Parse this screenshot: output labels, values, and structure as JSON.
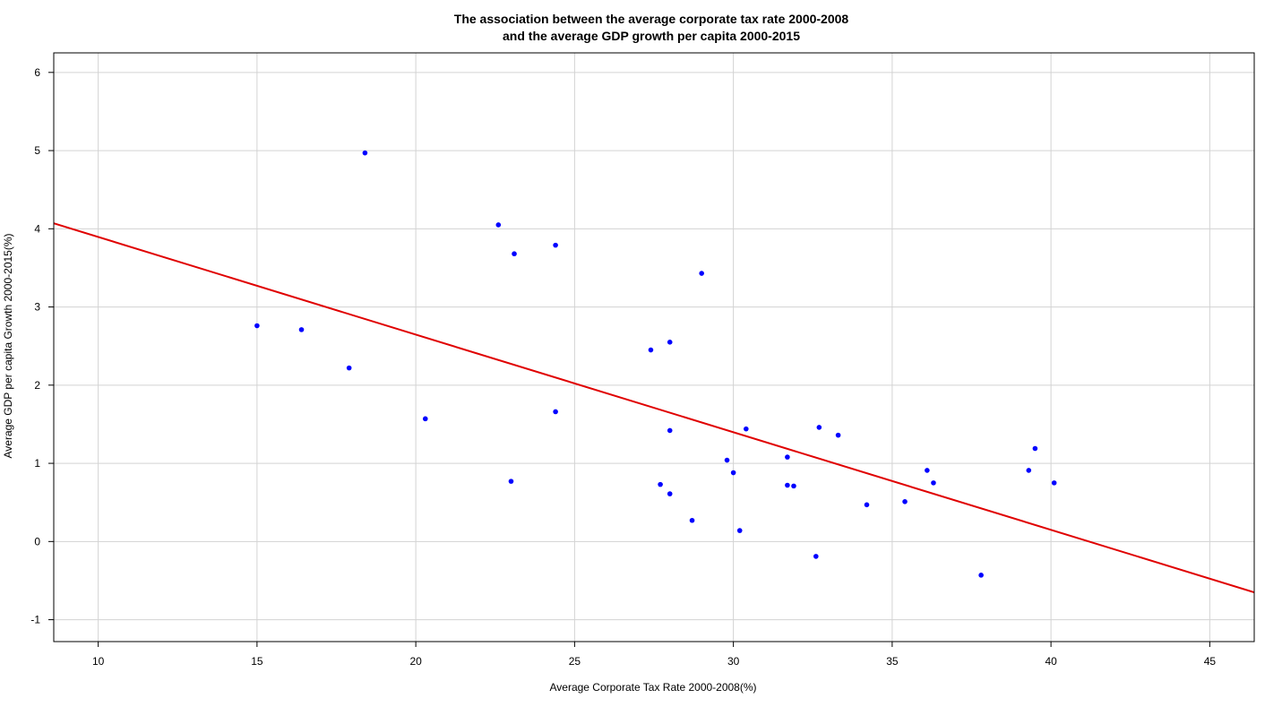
{
  "chart_data": {
    "type": "scatter",
    "title": "The association between the average corporate tax rate 2000-2008",
    "subtitle": "and the average GDP growth per capita 2000-2015",
    "xlabel": "Average Corporate Tax Rate 2000-2008(%)",
    "ylabel": "Average GDP per capita Growth 2000-2015(%)",
    "xlim": [
      8.6,
      46.4
    ],
    "ylim": [
      -1.28,
      6.25
    ],
    "x_ticks": [
      10,
      15,
      20,
      25,
      30,
      35,
      40,
      45
    ],
    "y_ticks": [
      -1,
      0,
      1,
      2,
      3,
      4,
      5,
      6
    ],
    "grid": true,
    "point_color": "#0000ff",
    "line_color": "#e00000",
    "points": [
      {
        "x": 15.0,
        "y": 2.76
      },
      {
        "x": 16.4,
        "y": 2.71
      },
      {
        "x": 17.9,
        "y": 2.22
      },
      {
        "x": 18.4,
        "y": 4.97
      },
      {
        "x": 20.3,
        "y": 1.57
      },
      {
        "x": 22.6,
        "y": 4.05
      },
      {
        "x": 23.0,
        "y": 0.77
      },
      {
        "x": 23.1,
        "y": 3.68
      },
      {
        "x": 24.4,
        "y": 3.79
      },
      {
        "x": 24.4,
        "y": 1.66
      },
      {
        "x": 27.4,
        "y": 2.45
      },
      {
        "x": 27.7,
        "y": 0.73
      },
      {
        "x": 28.0,
        "y": 2.55
      },
      {
        "x": 28.0,
        "y": 1.42
      },
      {
        "x": 28.0,
        "y": 0.61
      },
      {
        "x": 28.7,
        "y": 0.27
      },
      {
        "x": 29.0,
        "y": 3.43
      },
      {
        "x": 29.8,
        "y": 1.04
      },
      {
        "x": 30.0,
        "y": 0.88
      },
      {
        "x": 30.2,
        "y": 0.14
      },
      {
        "x": 30.4,
        "y": 1.44
      },
      {
        "x": 31.7,
        "y": 1.08
      },
      {
        "x": 31.7,
        "y": 0.72
      },
      {
        "x": 31.9,
        "y": 0.71
      },
      {
        "x": 32.6,
        "y": -0.19
      },
      {
        "x": 32.7,
        "y": 1.46
      },
      {
        "x": 33.3,
        "y": 1.36
      },
      {
        "x": 34.2,
        "y": 0.47
      },
      {
        "x": 35.4,
        "y": 0.51
      },
      {
        "x": 36.1,
        "y": 0.91
      },
      {
        "x": 36.3,
        "y": 0.75
      },
      {
        "x": 37.8,
        "y": -0.43
      },
      {
        "x": 39.3,
        "y": 0.91
      },
      {
        "x": 39.5,
        "y": 1.19
      },
      {
        "x": 40.1,
        "y": 0.75
      }
    ],
    "regression_line": [
      {
        "x": 8.6,
        "y": 4.07
      },
      {
        "x": 46.4,
        "y": -0.65
      }
    ]
  }
}
